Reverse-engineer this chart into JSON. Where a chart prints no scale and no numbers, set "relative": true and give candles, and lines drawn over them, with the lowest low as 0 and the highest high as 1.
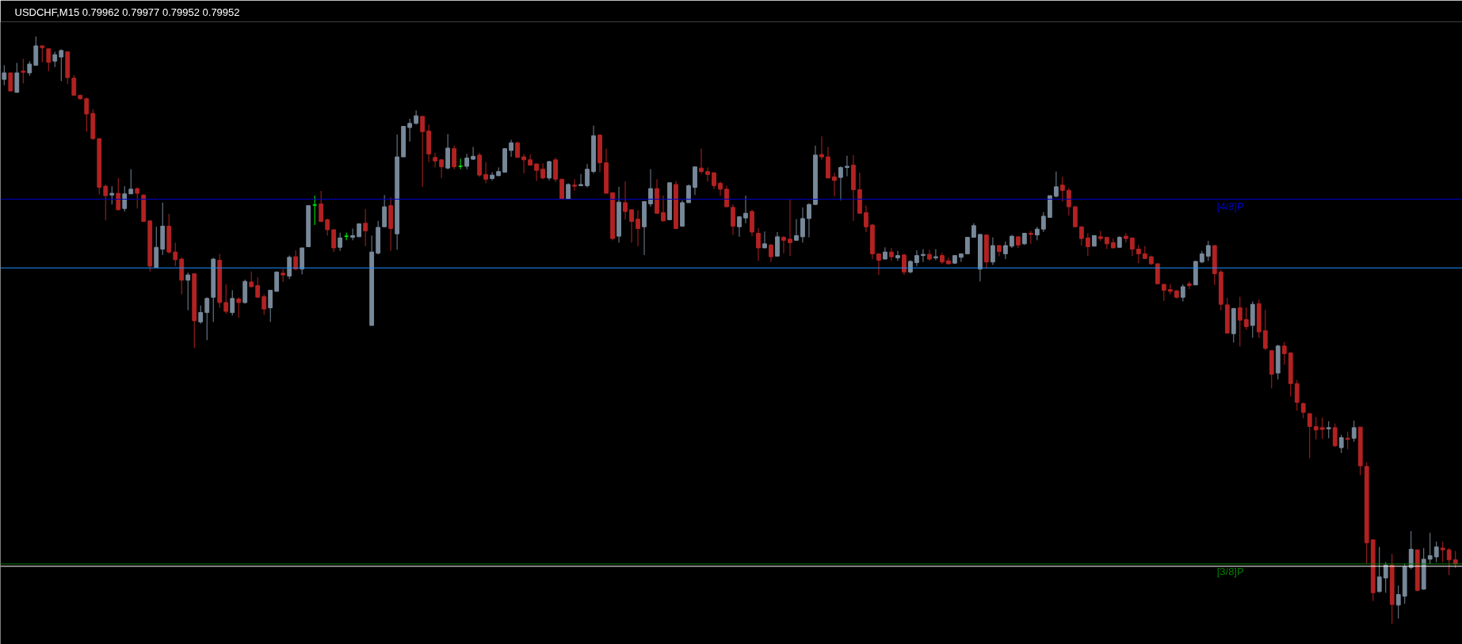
{
  "chart_data": {
    "type": "candlestick",
    "title": "USDCHF,M15  0.79962 0.79977 0.79952 0.79952",
    "relative": true,
    "categories": [
      null,
      null,
      null,
      null,
      null,
      null,
      null,
      null,
      null,
      null,
      null,
      null,
      null,
      null,
      null,
      null,
      null,
      null,
      null,
      null,
      null,
      null,
      null,
      null,
      null,
      null,
      null,
      null,
      null,
      null,
      null,
      null,
      null,
      null,
      null,
      null,
      null,
      null,
      null,
      null,
      null,
      null,
      null,
      null,
      null,
      null,
      null,
      null,
      null,
      null,
      null,
      null,
      null,
      null,
      null,
      null,
      null,
      null,
      null,
      null,
      null,
      null,
      null,
      null,
      null,
      null,
      null,
      null,
      null,
      null,
      null,
      null,
      null,
      null,
      null,
      null,
      null,
      null,
      null,
      null,
      null,
      null,
      null,
      null,
      null,
      null,
      null,
      null,
      null,
      null,
      null,
      null,
      null,
      null,
      null,
      null,
      null,
      null,
      null,
      null,
      null,
      null,
      null,
      null,
      null,
      null,
      null,
      null,
      null,
      null,
      null,
      null,
      null,
      null,
      null,
      null,
      null,
      null,
      null,
      null,
      null,
      null,
      null,
      null,
      null,
      null,
      null,
      null,
      null,
      null,
      null,
      null,
      null,
      null,
      null,
      null,
      null,
      null,
      null,
      null,
      null,
      null,
      null,
      null,
      null,
      null,
      null,
      null,
      null,
      null,
      null,
      null,
      null,
      null,
      null,
      null,
      null,
      null,
      null,
      null,
      null,
      null,
      null,
      null,
      null,
      null,
      null,
      null,
      null,
      null,
      null,
      null,
      null,
      null,
      null,
      null,
      null,
      null,
      null,
      null,
      null,
      null,
      null,
      null,
      null,
      null,
      null,
      null,
      null,
      null,
      null,
      null,
      null,
      null,
      null,
      null,
      null,
      null,
      null,
      null,
      null,
      null,
      null,
      null,
      null,
      null,
      null,
      null,
      null,
      null,
      null,
      null,
      null,
      null,
      null,
      null,
      null,
      null,
      null,
      null,
      null,
      null,
      null,
      null,
      null,
      null,
      null,
      null,
      null,
      null
    ],
    "ohlc": [
      [
        0.927,
        0.951,
        0.917,
        0.938
      ],
      [
        0.938,
        0.938,
        0.907,
        0.907
      ],
      [
        0.905,
        0.955,
        0.904,
        0.938
      ],
      [
        0.941,
        0.962,
        0.92,
        0.939
      ],
      [
        0.938,
        0.958,
        0.933,
        0.953
      ],
      [
        0.951,
        1.0,
        0.951,
        0.984
      ],
      [
        0.984,
        0.984,
        0.956,
        0.981
      ],
      [
        0.979,
        0.979,
        0.941,
        0.956
      ],
      [
        0.958,
        0.974,
        0.948,
        0.969
      ],
      [
        0.965,
        0.978,
        0.924,
        0.976
      ],
      [
        0.974,
        0.974,
        0.919,
        0.93
      ],
      [
        0.929,
        0.934,
        0.9,
        0.9
      ],
      [
        0.9,
        0.9,
        0.892,
        0.894
      ],
      [
        0.894,
        0.896,
        0.838,
        0.868
      ],
      [
        0.869,
        0.876,
        0.824,
        0.826
      ],
      [
        0.826,
        0.826,
        0.731,
        0.743
      ],
      [
        0.745,
        0.748,
        0.687,
        0.729
      ],
      [
        0.73,
        0.745,
        0.714,
        0.733
      ],
      [
        0.733,
        0.759,
        0.704,
        0.705
      ],
      [
        0.707,
        0.745,
        0.702,
        0.732
      ],
      [
        0.732,
        0.774,
        0.732,
        0.74
      ],
      [
        0.741,
        0.743,
        0.707,
        0.733
      ],
      [
        0.73,
        0.731,
        0.685,
        0.685
      ],
      [
        0.686,
        0.686,
        0.6,
        0.609
      ],
      [
        0.607,
        0.676,
        0.607,
        0.641
      ],
      [
        0.638,
        0.717,
        0.628,
        0.677
      ],
      [
        0.677,
        0.698,
        0.63,
        0.633
      ],
      [
        0.633,
        0.649,
        0.609,
        0.62
      ],
      [
        0.621,
        0.624,
        0.561,
        0.585
      ],
      [
        0.585,
        0.598,
        0.534,
        0.594
      ],
      [
        0.596,
        0.596,
        0.47,
        0.516
      ],
      [
        0.514,
        0.542,
        0.511,
        0.53
      ],
      [
        0.53,
        0.556,
        0.483,
        0.554
      ],
      [
        0.556,
        0.623,
        0.514,
        0.621
      ],
      [
        0.619,
        0.63,
        0.538,
        0.547
      ],
      [
        0.547,
        0.578,
        0.528,
        0.532
      ],
      [
        0.53,
        0.568,
        0.525,
        0.554
      ],
      [
        0.553,
        0.556,
        0.521,
        0.547
      ],
      [
        0.547,
        0.586,
        0.545,
        0.583
      ],
      [
        0.582,
        0.6,
        0.573,
        0.574
      ],
      [
        0.576,
        0.59,
        0.556,
        0.556
      ],
      [
        0.557,
        0.561,
        0.526,
        0.536
      ],
      [
        0.538,
        0.568,
        0.514,
        0.568
      ],
      [
        0.566,
        0.6,
        0.566,
        0.599
      ],
      [
        0.597,
        0.604,
        0.582,
        0.594
      ],
      [
        0.592,
        0.627,
        0.587,
        0.624
      ],
      [
        0.625,
        0.636,
        0.602,
        0.604
      ],
      [
        0.604,
        0.64,
        0.595,
        0.64
      ],
      [
        0.642,
        0.712,
        0.642,
        0.712
      ],
      [
        0.713,
        0.729,
        0.679,
        0.713
      ],
      [
        0.715,
        0.737,
        0.684,
        0.685
      ],
      [
        0.688,
        0.69,
        0.661,
        0.671
      ],
      [
        0.671,
        0.671,
        0.633,
        0.64
      ],
      [
        0.641,
        0.666,
        0.635,
        0.657
      ],
      [
        0.66,
        0.666,
        0.653,
        0.66
      ],
      [
        0.658,
        0.673,
        0.653,
        0.661
      ],
      [
        0.659,
        0.681,
        0.659,
        0.681
      ],
      [
        0.682,
        0.706,
        0.643,
        0.669
      ],
      [
        0.508,
        0.661,
        0.508,
        0.633
      ],
      [
        0.631,
        0.686,
        0.629,
        0.675
      ],
      [
        0.676,
        0.73,
        0.675,
        0.71
      ],
      [
        0.712,
        0.726,
        0.635,
        0.673
      ],
      [
        0.664,
        0.833,
        0.637,
        0.795
      ],
      [
        0.795,
        0.847,
        0.795,
        0.847
      ],
      [
        0.845,
        0.86,
        0.821,
        0.852
      ],
      [
        0.852,
        0.874,
        0.85,
        0.865
      ],
      [
        0.864,
        0.864,
        0.744,
        0.838
      ],
      [
        0.839,
        0.85,
        0.786,
        0.8
      ],
      [
        0.794,
        0.802,
        0.777,
        0.788
      ],
      [
        0.79,
        0.791,
        0.759,
        0.778
      ],
      [
        0.776,
        0.834,
        0.774,
        0.81
      ],
      [
        0.809,
        0.814,
        0.774,
        0.778
      ],
      [
        0.779,
        0.792,
        0.774,
        0.779
      ],
      [
        0.779,
        0.8,
        0.774,
        0.793
      ],
      [
        0.791,
        0.812,
        0.79,
        0.796
      ],
      [
        0.798,
        0.802,
        0.761,
        0.764
      ],
      [
        0.765,
        0.786,
        0.75,
        0.757
      ],
      [
        0.758,
        0.769,
        0.755,
        0.764
      ],
      [
        0.763,
        0.777,
        0.762,
        0.77
      ],
      [
        0.769,
        0.81,
        0.769,
        0.809
      ],
      [
        0.806,
        0.824,
        0.795,
        0.819
      ],
      [
        0.819,
        0.821,
        0.794,
        0.794
      ],
      [
        0.795,
        0.8,
        0.767,
        0.79
      ],
      [
        0.79,
        0.799,
        0.781,
        0.781
      ],
      [
        0.783,
        0.783,
        0.754,
        0.772
      ],
      [
        0.774,
        0.784,
        0.757,
        0.759
      ],
      [
        0.759,
        0.788,
        0.755,
        0.787
      ],
      [
        0.79,
        0.794,
        0.752,
        0.757
      ],
      [
        0.757,
        0.757,
        0.724,
        0.724
      ],
      [
        0.723,
        0.75,
        0.723,
        0.748
      ],
      [
        0.747,
        0.757,
        0.737,
        0.745
      ],
      [
        0.746,
        0.766,
        0.746,
        0.748
      ],
      [
        0.746,
        0.783,
        0.743,
        0.774
      ],
      [
        0.77,
        0.848,
        0.767,
        0.831
      ],
      [
        0.832,
        0.834,
        0.769,
        0.785
      ],
      [
        0.785,
        0.809,
        0.733,
        0.733
      ],
      [
        0.734,
        0.734,
        0.653,
        0.656
      ],
      [
        0.66,
        0.744,
        0.649,
        0.718
      ],
      [
        0.717,
        0.753,
        0.688,
        0.702
      ],
      [
        0.705,
        0.705,
        0.649,
        0.685
      ],
      [
        0.689,
        0.704,
        0.643,
        0.673
      ],
      [
        0.676,
        0.719,
        0.628,
        0.719
      ],
      [
        0.715,
        0.774,
        0.71,
        0.741
      ],
      [
        0.741,
        0.757,
        0.698,
        0.699
      ],
      [
        0.7,
        0.729,
        0.685,
        0.686
      ],
      [
        0.688,
        0.752,
        0.688,
        0.751
      ],
      [
        0.748,
        0.754,
        0.673,
        0.673
      ],
      [
        0.677,
        0.721,
        0.676,
        0.717
      ],
      [
        0.717,
        0.748,
        0.717,
        0.746
      ],
      [
        0.743,
        0.778,
        0.73,
        0.778
      ],
      [
        0.776,
        0.809,
        0.766,
        0.77
      ],
      [
        0.77,
        0.777,
        0.753,
        0.765
      ],
      [
        0.768,
        0.768,
        0.74,
        0.746
      ],
      [
        0.75,
        0.753,
        0.729,
        0.74
      ],
      [
        0.74,
        0.746,
        0.71,
        0.71
      ],
      [
        0.709,
        0.714,
        0.662,
        0.677
      ],
      [
        0.676,
        0.693,
        0.659,
        0.693
      ],
      [
        0.691,
        0.729,
        0.682,
        0.699
      ],
      [
        0.702,
        0.705,
        0.66,
        0.667
      ],
      [
        0.665,
        0.674,
        0.618,
        0.64
      ],
      [
        0.64,
        0.668,
        0.64,
        0.647
      ],
      [
        0.645,
        0.647,
        0.616,
        0.625
      ],
      [
        0.626,
        0.667,
        0.626,
        0.659
      ],
      [
        0.658,
        0.66,
        0.631,
        0.653
      ],
      [
        0.655,
        0.722,
        0.626,
        0.649
      ],
      [
        0.653,
        0.689,
        0.653,
        0.661
      ],
      [
        0.659,
        0.709,
        0.649,
        0.69
      ],
      [
        0.69,
        0.716,
        0.658,
        0.714
      ],
      [
        0.714,
        0.814,
        0.713,
        0.798
      ],
      [
        0.799,
        0.83,
        0.79,
        0.795
      ],
      [
        0.795,
        0.812,
        0.759,
        0.759
      ],
      [
        0.761,
        0.768,
        0.728,
        0.755
      ],
      [
        0.76,
        0.779,
        0.721,
        0.777
      ],
      [
        0.777,
        0.797,
        0.762,
        0.779
      ],
      [
        0.781,
        0.798,
        0.686,
        0.739
      ],
      [
        0.739,
        0.768,
        0.699,
        0.699
      ],
      [
        0.7,
        0.712,
        0.667,
        0.676
      ],
      [
        0.679,
        0.681,
        0.621,
        0.63
      ],
      [
        0.63,
        0.63,
        0.594,
        0.619
      ],
      [
        0.621,
        0.641,
        0.621,
        0.633
      ],
      [
        0.633,
        0.64,
        0.618,
        0.625
      ],
      [
        0.623,
        0.635,
        0.618,
        0.627
      ],
      [
        0.628,
        0.63,
        0.594,
        0.599
      ],
      [
        0.599,
        0.619,
        0.597,
        0.617
      ],
      [
        0.615,
        0.636,
        0.609,
        0.627
      ],
      [
        0.627,
        0.638,
        0.616,
        0.629
      ],
      [
        0.629,
        0.637,
        0.618,
        0.621
      ],
      [
        0.623,
        0.638,
        0.619,
        0.625
      ],
      [
        0.627,
        0.632,
        0.613,
        0.616
      ],
      [
        0.618,
        0.624,
        0.612,
        0.613
      ],
      [
        0.614,
        0.627,
        0.613,
        0.627
      ],
      [
        0.624,
        0.63,
        0.616,
        0.63
      ],
      [
        0.63,
        0.658,
        0.63,
        0.658
      ],
      [
        0.658,
        0.682,
        0.658,
        0.678
      ],
      [
        0.604,
        0.663,
        0.583,
        0.663
      ],
      [
        0.662,
        0.662,
        0.605,
        0.616
      ],
      [
        0.616,
        0.658,
        0.611,
        0.644
      ],
      [
        0.644,
        0.645,
        0.626,
        0.634
      ],
      [
        0.63,
        0.651,
        0.621,
        0.644
      ],
      [
        0.643,
        0.662,
        0.64,
        0.66
      ],
      [
        0.659,
        0.66,
        0.64,
        0.645
      ],
      [
        0.647,
        0.665,
        0.645,
        0.665
      ],
      [
        0.665,
        0.669,
        0.647,
        0.663
      ],
      [
        0.662,
        0.676,
        0.653,
        0.672
      ],
      [
        0.672,
        0.701,
        0.667,
        0.694
      ],
      [
        0.692,
        0.729,
        0.692,
        0.729
      ],
      [
        0.728,
        0.77,
        0.726,
        0.744
      ],
      [
        0.747,
        0.761,
        0.719,
        0.738
      ],
      [
        0.738,
        0.742,
        0.695,
        0.71
      ],
      [
        0.71,
        0.712,
        0.676,
        0.676
      ],
      [
        0.676,
        0.676,
        0.644,
        0.656
      ],
      [
        0.657,
        0.665,
        0.626,
        0.642
      ],
      [
        0.643,
        0.662,
        0.643,
        0.661
      ],
      [
        0.659,
        0.669,
        0.652,
        0.656
      ],
      [
        0.658,
        0.658,
        0.638,
        0.647
      ],
      [
        0.649,
        0.656,
        0.64,
        0.64
      ],
      [
        0.641,
        0.66,
        0.641,
        0.658
      ],
      [
        0.66,
        0.665,
        0.649,
        0.656
      ],
      [
        0.657,
        0.657,
        0.626,
        0.638
      ],
      [
        0.638,
        0.645,
        0.614,
        0.63
      ],
      [
        0.63,
        0.643,
        0.621,
        0.622
      ],
      [
        0.625,
        0.627,
        0.611,
        0.613
      ],
      [
        0.613,
        0.614,
        0.579,
        0.579
      ],
      [
        0.578,
        0.578,
        0.55,
        0.568
      ],
      [
        0.569,
        0.578,
        0.561,
        0.566
      ],
      [
        0.567,
        0.568,
        0.554,
        0.556
      ],
      [
        0.556,
        0.578,
        0.549,
        0.574
      ],
      [
        0.579,
        0.583,
        0.57,
        0.576
      ],
      [
        0.577,
        0.618,
        0.577,
        0.617
      ],
      [
        0.616,
        0.635,
        0.614,
        0.63
      ],
      [
        0.626,
        0.652,
        0.618,
        0.644
      ],
      [
        0.644,
        0.644,
        0.577,
        0.596
      ],
      [
        0.599,
        0.603,
        0.534,
        0.544
      ],
      [
        0.543,
        0.555,
        0.495,
        0.495
      ],
      [
        0.494,
        0.537,
        0.479,
        0.537
      ],
      [
        0.538,
        0.557,
        0.472,
        0.517
      ],
      [
        0.518,
        0.539,
        0.501,
        0.506
      ],
      [
        0.508,
        0.549,
        0.487,
        0.544
      ],
      [
        0.545,
        0.552,
        0.487,
        0.497
      ],
      [
        0.499,
        0.535,
        0.466,
        0.469
      ],
      [
        0.465,
        0.465,
        0.401,
        0.425
      ],
      [
        0.427,
        0.475,
        0.416,
        0.473
      ],
      [
        0.473,
        0.48,
        0.441,
        0.46
      ],
      [
        0.461,
        0.463,
        0.387,
        0.409
      ],
      [
        0.409,
        0.415,
        0.363,
        0.377
      ],
      [
        0.375,
        0.377,
        0.35,
        0.36
      ],
      [
        0.358,
        0.358,
        0.282,
        0.336
      ],
      [
        0.336,
        0.352,
        0.314,
        0.33
      ],
      [
        0.334,
        0.351,
        0.315,
        0.331
      ],
      [
        0.332,
        0.345,
        0.316,
        0.334
      ],
      [
        0.334,
        0.341,
        0.301,
        0.303
      ],
      [
        0.3,
        0.322,
        0.291,
        0.317
      ],
      [
        0.316,
        0.327,
        0.297,
        0.314
      ],
      [
        0.316,
        0.346,
        0.31,
        0.334
      ],
      [
        0.335,
        0.335,
        0.253,
        0.269
      ],
      [
        0.268,
        0.275,
        0.103,
        0.138
      ],
      [
        0.143,
        0.143,
        0.039,
        0.053
      ],
      [
        0.055,
        0.131,
        0.053,
        0.08
      ],
      [
        0.078,
        0.105,
        0.053,
        0.1
      ],
      [
        0.1,
        0.119,
        0.0,
        0.033
      ],
      [
        0.032,
        0.065,
        0.009,
        0.05
      ],
      [
        0.047,
        0.102,
        0.034,
        0.097
      ],
      [
        0.096,
        0.158,
        0.093,
        0.127
      ],
      [
        0.126,
        0.126,
        0.055,
        0.057
      ],
      [
        0.059,
        0.129,
        0.058,
        0.11
      ],
      [
        0.11,
        0.155,
        0.102,
        0.116
      ],
      [
        0.114,
        0.14,
        0.105,
        0.131
      ],
      [
        0.129,
        0.14,
        0.105,
        0.126
      ],
      [
        0.126,
        0.129,
        0.083,
        0.109
      ],
      [
        0.109,
        0.124,
        0.095,
        0.102
      ]
    ],
    "colors": [
      "#778899",
      "#b22222",
      "#778899",
      "#b22222",
      "#778899",
      "#778899",
      "#b22222",
      "#b22222",
      "#778899",
      "#778899",
      "#b22222",
      "#b22222",
      "#b22222",
      "#b22222",
      "#b22222",
      "#b22222",
      "#b22222",
      "#778899",
      "#b22222",
      "#778899",
      "#778899",
      "#b22222",
      "#b22222",
      "#b22222",
      "#778899",
      "#778899",
      "#b22222",
      "#b22222",
      "#b22222",
      "#778899",
      "#b22222",
      "#778899",
      "#778899",
      "#778899",
      "#b22222",
      "#b22222",
      "#778899",
      "#b22222",
      "#778899",
      "#b22222",
      "#b22222",
      "#b22222",
      "#778899",
      "#778899",
      "#b22222",
      "#778899",
      "#b22222",
      "#778899",
      "#778899",
      "#00ff00",
      "#b22222",
      "#b22222",
      "#b22222",
      "#778899",
      "#00ff00",
      "#778899",
      "#778899",
      "#b22222",
      "#778899",
      "#778899",
      "#778899",
      "#b22222",
      "#778899",
      "#778899",
      "#778899",
      "#778899",
      "#b22222",
      "#b22222",
      "#b22222",
      "#b22222",
      "#778899",
      "#b22222",
      "#00ff00",
      "#778899",
      "#778899",
      "#b22222",
      "#b22222",
      "#778899",
      "#778899",
      "#778899",
      "#778899",
      "#b22222",
      "#b22222",
      "#b22222",
      "#b22222",
      "#b22222",
      "#778899",
      "#b22222",
      "#b22222",
      "#778899",
      "#b22222",
      "#778899",
      "#778899",
      "#778899",
      "#b22222",
      "#b22222",
      "#b22222",
      "#778899",
      "#b22222",
      "#b22222",
      "#b22222",
      "#778899",
      "#778899",
      "#b22222",
      "#b22222",
      "#778899",
      "#b22222",
      "#778899",
      "#778899",
      "#778899",
      "#b22222",
      "#b22222",
      "#b22222",
      "#b22222",
      "#b22222",
      "#b22222",
      "#778899",
      "#778899",
      "#b22222",
      "#b22222",
      "#778899",
      "#b22222",
      "#778899",
      "#b22222",
      "#b22222",
      "#778899",
      "#778899",
      "#778899",
      "#778899",
      "#b22222",
      "#b22222",
      "#b22222",
      "#778899",
      "#778899",
      "#b22222",
      "#b22222",
      "#b22222",
      "#b22222",
      "#b22222",
      "#778899",
      "#b22222",
      "#778899",
      "#b22222",
      "#778899",
      "#778899",
      "#778899",
      "#b22222",
      "#778899",
      "#b22222",
      "#b22222",
      "#778899",
      "#778899",
      "#778899",
      "#778899",
      "#778899",
      "#b22222",
      "#778899",
      "#b22222",
      "#778899",
      "#778899",
      "#b22222",
      "#778899",
      "#b22222",
      "#778899",
      "#778899",
      "#778899",
      "#778899",
      "#b22222",
      "#b22222",
      "#b22222",
      "#b22222",
      "#b22222",
      "#778899",
      "#b22222",
      "#b22222",
      "#b22222",
      "#778899",
      "#b22222",
      "#b22222",
      "#b22222",
      "#b22222",
      "#b22222",
      "#b22222",
      "#b22222",
      "#b22222",
      "#b22222",
      "#778899",
      "#b22222",
      "#778899",
      "#778899",
      "#778899",
      "#b22222",
      "#b22222",
      "#b22222",
      "#778899",
      "#b22222",
      "#b22222",
      "#778899",
      "#b22222",
      "#b22222",
      "#b22222",
      "#778899",
      "#b22222",
      "#b22222",
      "#b22222",
      "#b22222",
      "#b22222",
      "#b22222",
      "#b22222",
      "#778899",
      "#b22222",
      "#778899",
      "#b22222",
      "#778899",
      "#b22222",
      "#b22222",
      "#b22222",
      "#778899",
      "#778899",
      "#b22222",
      "#778899",
      "#778899",
      "#778899",
      "#b22222",
      "#778899",
      "#778899",
      "#778899",
      "#b22222",
      "#b22222",
      "#b22222"
    ],
    "ref_lines": [
      {
        "axis": "y",
        "value": 0.723,
        "label": "[4/8]P",
        "color": "#0000cd"
      },
      {
        "axis": "y",
        "value": 0.606,
        "color": "#1e90ff"
      },
      {
        "axis": "y",
        "value": 0.102,
        "label": "[3/8]P",
        "color": "#008000"
      },
      {
        "axis": "y",
        "value": 0.098,
        "color": "#ffffff"
      }
    ]
  }
}
